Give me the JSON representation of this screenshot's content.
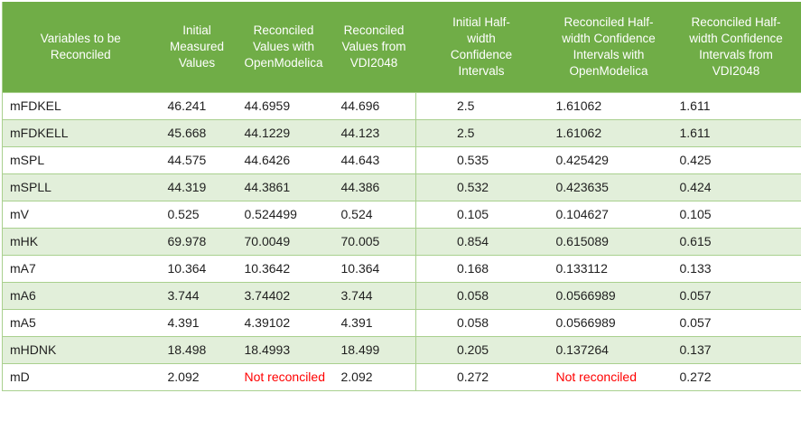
{
  "chart_data": {
    "type": "table",
    "columns": [
      {
        "id": "variable",
        "label": "Variables to be\nReconciled"
      },
      {
        "id": "initial",
        "label": "Initial\nMeasured\nValues"
      },
      {
        "id": "om",
        "label": "Reconciled\nValues with\nOpenModelica"
      },
      {
        "id": "vdi",
        "label": "Reconciled\nValues from\nVDI2048"
      },
      {
        "id": "ci-initial",
        "label": "Initial Half-\nwidth\nConfidence\nIntervals"
      },
      {
        "id": "ci-om",
        "label": "Reconciled Half-\nwidth Confidence\nIntervals with\nOpenModelica"
      },
      {
        "id": "ci-vdi",
        "label": "Reconciled Half-\nwidth Confidence\nIntervals from\nVDI2048"
      }
    ],
    "not_reconciled_label": "Not reconciled",
    "rows": [
      [
        "mFDKEL",
        "46.241",
        "44.6959",
        "44.696",
        "2.5",
        "1.61062",
        "1.611"
      ],
      [
        "mFDKELL",
        "45.668",
        "44.1229",
        "44.123",
        "2.5",
        "1.61062",
        "1.611"
      ],
      [
        "mSPL",
        "44.575",
        "44.6426",
        "44.643",
        "0.535",
        "0.425429",
        "0.425"
      ],
      [
        "mSPLL",
        "44.319",
        "44.3861",
        "44.386",
        "0.532",
        "0.423635",
        "0.424"
      ],
      [
        "mV",
        "0.525",
        "0.524499",
        "0.524",
        "0.105",
        "0.104627",
        "0.105"
      ],
      [
        "mHK",
        "69.978",
        "70.0049",
        "70.005",
        "0.854",
        "0.615089",
        "0.615"
      ],
      [
        "mA7",
        "10.364",
        "10.3642",
        "10.364",
        "0.168",
        "0.133112",
        "0.133"
      ],
      [
        "mA6",
        "3.744",
        "3.74402",
        "3.744",
        "0.058",
        "0.0566989",
        "0.057"
      ],
      [
        "mA5",
        "4.391",
        "4.39102",
        "4.391",
        "0.058",
        "0.0566989",
        "0.057"
      ],
      [
        "mHDNK",
        "18.498",
        "18.4993",
        "18.499",
        "0.205",
        "0.137264",
        "0.137"
      ],
      [
        "mD",
        "2.092",
        "Not reconciled",
        "2.092",
        "0.272",
        "Not reconciled",
        "0.272"
      ]
    ],
    "layout_hints": {
      "banded_rows": true,
      "band_start": "white",
      "vertical_divider_after_column": 4,
      "grid": "horizontal-light-green"
    }
  },
  "colors": {
    "header_bg": "#70AD47",
    "header_text": "#FFFFFF",
    "band_bg": "#E2EFDA",
    "row_bg": "#FFFFFF",
    "border": "#A9D08E",
    "body_text": "#1F1F1F",
    "not_reconciled_text": "#FF0000"
  }
}
